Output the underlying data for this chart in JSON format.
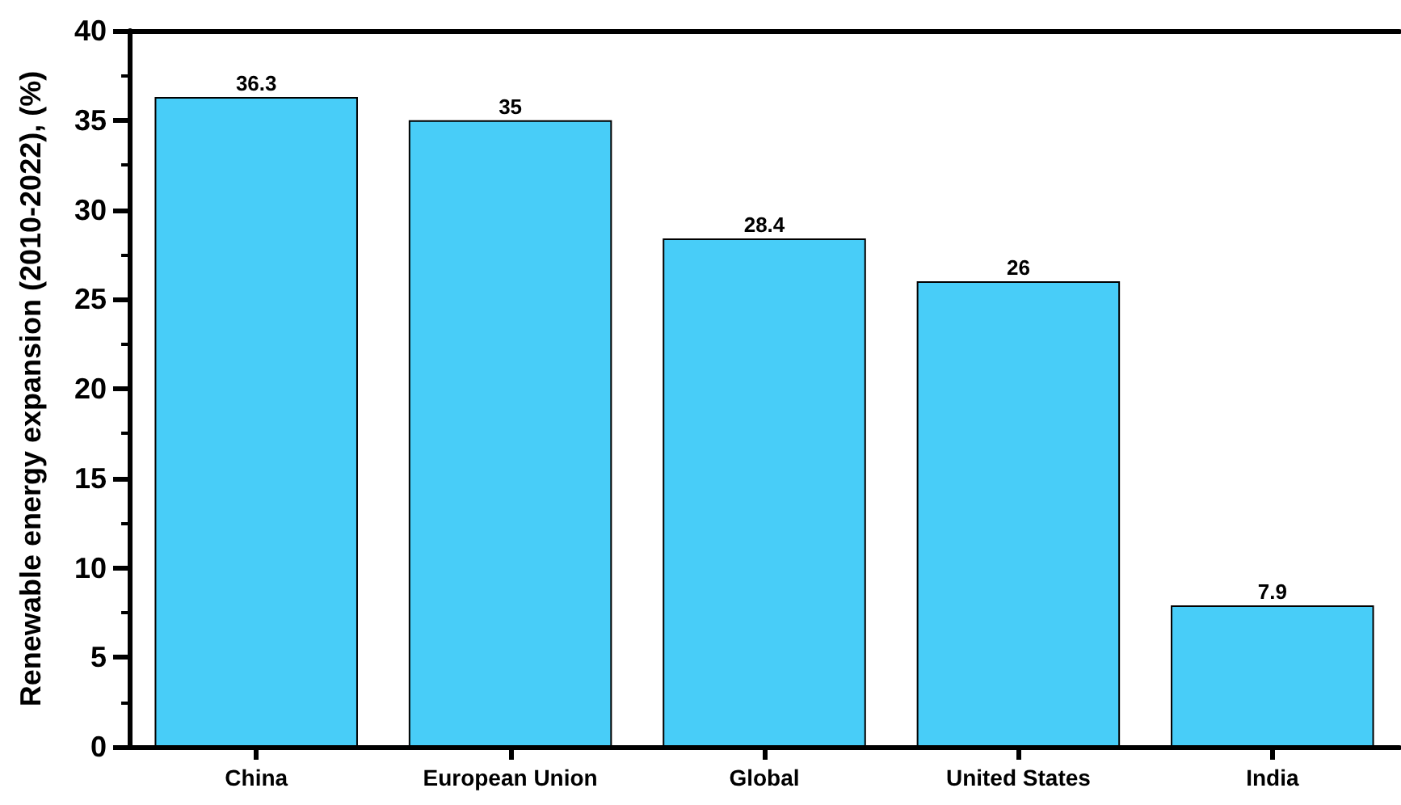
{
  "chart_data": {
    "type": "bar",
    "ylabel": "Renewable energy expansion (2010-2022), (%)",
    "categories": [
      "China",
      "European Union",
      "Global",
      "United States",
      "India"
    ],
    "values": [
      36.3,
      35,
      28.4,
      26,
      7.9
    ],
    "color": "#48cdf8",
    "ylim": [
      0,
      40
    ],
    "yticks": [
      0,
      5,
      10,
      15,
      20,
      25,
      30,
      35,
      40
    ],
    "data_labels": true,
    "grid": false
  }
}
